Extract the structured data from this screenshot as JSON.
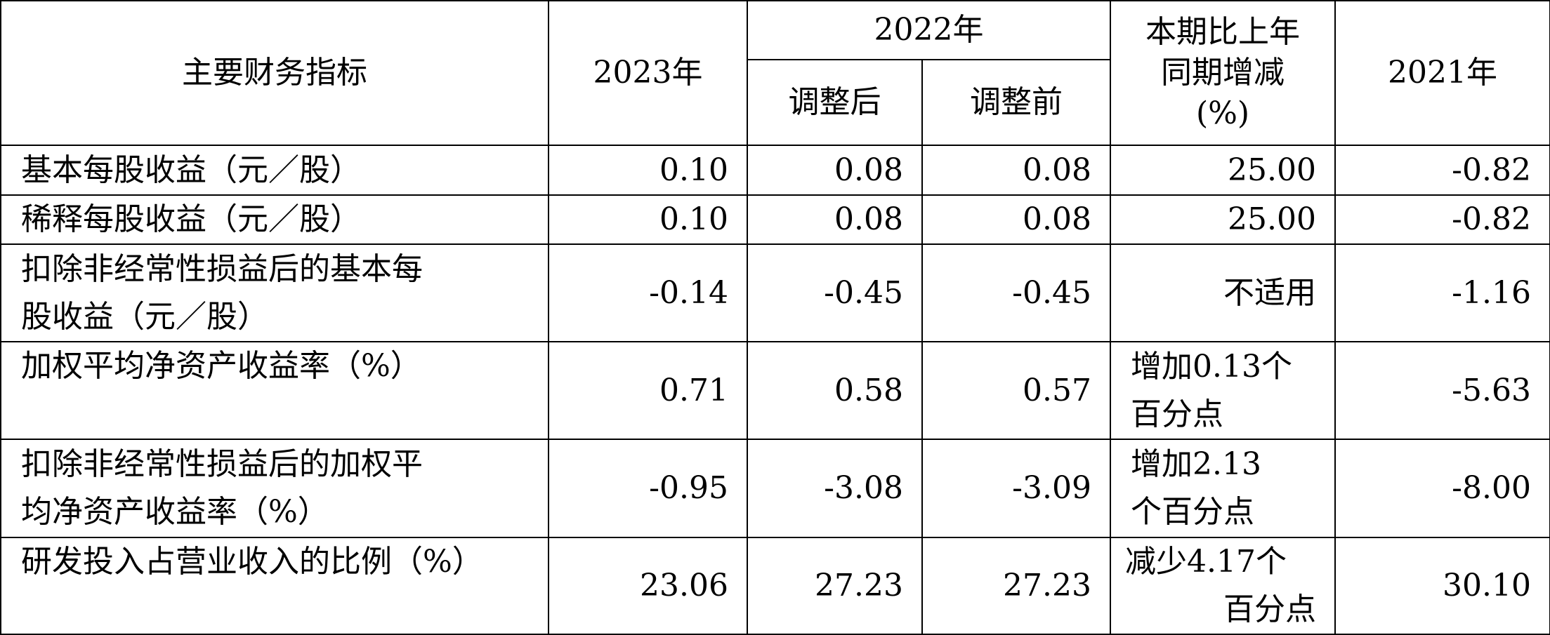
{
  "header": {
    "indicator": "主要财务指标",
    "y2023": "2023年",
    "y2022": "2022年",
    "adjusted_after": "调整后",
    "adjusted_before": "调整前",
    "yoy_line1": "本期比上年",
    "yoy_line2": "同期增减",
    "yoy_line3": "(%)",
    "y2021": "2021年"
  },
  "rows": [
    {
      "label": "基本每股收益（元／股）",
      "y2023": "0.10",
      "after": "0.08",
      "before": "0.08",
      "change": "25.00",
      "y2021": "-0.82"
    },
    {
      "label": "稀释每股收益（元／股）",
      "y2023": "0.10",
      "after": "0.08",
      "before": "0.08",
      "change": "25.00",
      "y2021": "-0.82"
    },
    {
      "label_line1": "扣除非经常性损益后的基本每",
      "label_line2": "股收益（元／股）",
      "y2023": "-0.14",
      "after": "-0.45",
      "before": "-0.45",
      "change": "不适用",
      "y2021": "-1.16"
    },
    {
      "label": "加权平均净资产收益率（%）",
      "y2023": "0.71",
      "after": "0.58",
      "before": "0.57",
      "change_line1": "增加0.13个",
      "change_line2": "百分点",
      "y2021": "-5.63"
    },
    {
      "label_line1": "扣除非经常性损益后的加权平",
      "label_line2": "均净资产收益率（%）",
      "y2023": "-0.95",
      "after": "-3.08",
      "before": "-3.09",
      "change_line1": "增加2.13",
      "change_line2": "个百分点",
      "y2021": "-8.00"
    },
    {
      "label": "研发投入占营业收入的比例（%）",
      "y2023": "23.06",
      "after": "27.23",
      "before": "27.23",
      "change_line1": "减少4.17个",
      "change_line2": "百分点",
      "y2021": "30.10"
    }
  ]
}
